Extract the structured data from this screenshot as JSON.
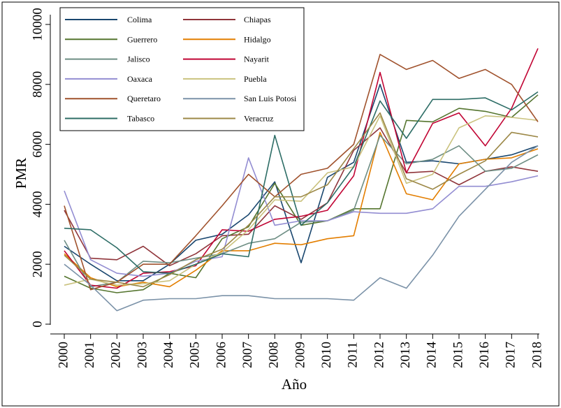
{
  "chart_data": {
    "type": "line",
    "title": "",
    "xlabel": "Año",
    "ylabel": "PMR",
    "x": [
      2000,
      2001,
      2002,
      2003,
      2004,
      2005,
      2006,
      2007,
      2008,
      2009,
      2010,
      2011,
      2012,
      2013,
      2014,
      2015,
      2016,
      2017,
      2018
    ],
    "xlim": [
      2000,
      2018
    ],
    "ylim": [
      0,
      10000
    ],
    "yticks": [
      0,
      2000,
      4000,
      6000,
      8000,
      10000
    ],
    "grid": false,
    "legend_position": "top-left",
    "series": [
      {
        "name": "Colima",
        "color": "#1a476f",
        "values": [
          2600,
          2000,
          1450,
          1450,
          2000,
          2800,
          3000,
          3650,
          4750,
          2050,
          4900,
          5400,
          8000,
          5400,
          5450,
          5350,
          5500,
          5650,
          5950
        ]
      },
      {
        "name": "Chiapas",
        "color": "#90353b",
        "values": [
          3800,
          2200,
          2150,
          2600,
          1950,
          2350,
          2950,
          3000,
          3950,
          3500,
          4050,
          5800,
          6550,
          5050,
          5100,
          4650,
          5100,
          5250,
          5100
        ]
      },
      {
        "name": "Guerrero",
        "color": "#55752f",
        "values": [
          1600,
          1200,
          1050,
          1150,
          1700,
          1550,
          2850,
          3250,
          4700,
          3300,
          3450,
          3850,
          3850,
          6800,
          6750,
          7200,
          7100,
          6900,
          7650
        ]
      },
      {
        "name": "Hidalgo",
        "color": "#e37e00",
        "values": [
          2350,
          1550,
          1250,
          1400,
          1250,
          1800,
          2450,
          2450,
          2700,
          2650,
          2850,
          2950,
          6400,
          4350,
          4150,
          5350,
          5500,
          5550,
          5850
        ]
      },
      {
        "name": "Jalisco",
        "color": "#6e8e84",
        "values": [
          2800,
          1250,
          1400,
          2100,
          2050,
          2200,
          2350,
          2700,
          2850,
          3400,
          3450,
          3800,
          6300,
          5350,
          5500,
          5950,
          5100,
          5200,
          5650
        ]
      },
      {
        "name": "Nayarit",
        "color": "#c10534",
        "values": [
          2450,
          1300,
          1200,
          1700,
          1750,
          1950,
          3150,
          3100,
          3500,
          3600,
          3800,
          4950,
          8400,
          5050,
          6700,
          7050,
          5950,
          7200,
          9200
        ]
      },
      {
        "name": "Oaxaca",
        "color": "#938dd2",
        "values": [
          4450,
          2150,
          1700,
          1600,
          1700,
          2100,
          2250,
          5550,
          3300,
          3450,
          3450,
          3750,
          3700,
          3700,
          3850,
          4600,
          4600,
          4750,
          4950
        ]
      },
      {
        "name": "Puebla",
        "color": "#cac27e",
        "values": [
          1300,
          1500,
          1300,
          1350,
          1450,
          2000,
          2400,
          3150,
          4150,
          4100,
          5050,
          5250,
          6950,
          4700,
          5000,
          6550,
          6950,
          6900,
          6800
        ]
      },
      {
        "name": "Queretaro",
        "color": "#a0522d",
        "values": [
          3950,
          1150,
          1400,
          2000,
          2000,
          2950,
          3950,
          5000,
          4250,
          5000,
          5200,
          6000,
          9000,
          8500,
          8800,
          8200,
          8500,
          8000,
          6750
        ]
      },
      {
        "name": "San Luis Potosi",
        "color": "#7b92a8",
        "values": [
          2000,
          1300,
          450,
          800,
          850,
          850,
          950,
          950,
          850,
          850,
          850,
          800,
          1550,
          1200,
          2300,
          3600,
          4500,
          5400,
          5950
        ]
      },
      {
        "name": "Tabasco",
        "color": "#2d6d66",
        "values": [
          3200,
          3150,
          2550,
          1750,
          1700,
          2000,
          2350,
          2250,
          6300,
          3300,
          4050,
          5250,
          7450,
          6200,
          7500,
          7500,
          7550,
          7150,
          7750
        ]
      },
      {
        "name": "Veracruz",
        "color": "#9c8847",
        "values": [
          2300,
          1500,
          1400,
          1250,
          1650,
          2150,
          2500,
          3300,
          4250,
          4250,
          4650,
          5850,
          7050,
          4850,
          4500,
          5000,
          5450,
          6400,
          6250
        ]
      }
    ]
  }
}
